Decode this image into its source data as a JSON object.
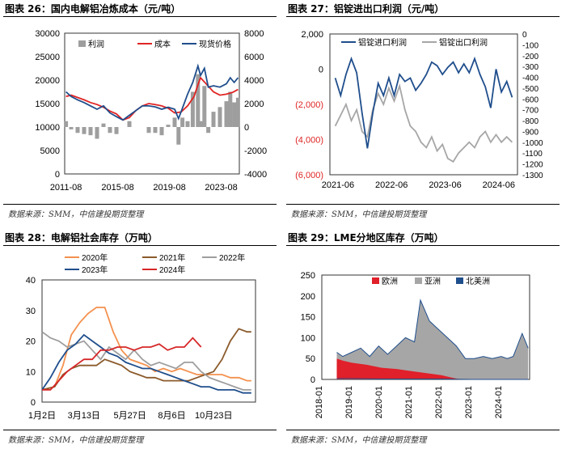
{
  "source_note": "数据来源：SMM，中信建投期货整理",
  "charts": [
    {
      "title": "图表 26：国内电解铝冶炼成本（元/吨）",
      "chart_data": {
        "type": "bar+line",
        "x_ticks": [
          "2011-08",
          "2015-08",
          "2019-08",
          "2023-08"
        ],
        "x_range": [
          2011.5,
          2025.0
        ],
        "y_left": {
          "range": [
            0,
            30000
          ],
          "ticks": [
            "0",
            "5000",
            "10000",
            "15000",
            "20000",
            "25000",
            "30000"
          ]
        },
        "y_right": {
          "range": [
            -4000,
            8000
          ],
          "ticks": [
            "-4000",
            "-2000",
            "0",
            "2000",
            "4000",
            "6000",
            "8000"
          ]
        },
        "legend": [
          "利润",
          "成本",
          "现货价格"
        ],
        "colors": {
          "profit": "#9e9e9e",
          "cost": "#e02424",
          "price": "#1f4e8c"
        },
        "series": [
          {
            "name": "成本",
            "axis": "left",
            "x": [
              2011.6,
              2012,
              2012.5,
              2013,
              2013.5,
              2014,
              2014.5,
              2015,
              2015.5,
              2016,
              2016.5,
              2017,
              2017.5,
              2018,
              2018.5,
              2019,
              2019.5,
              2020,
              2020.5,
              2021,
              2021.5,
              2021.8,
              2022,
              2022.5,
              2023,
              2023.5,
              2024,
              2024.5,
              2024.9
            ],
            "y": [
              16500,
              16800,
              16300,
              15800,
              15200,
              14800,
              14200,
              13400,
              12800,
              11500,
              12000,
              13500,
              14500,
              15000,
              14800,
              14500,
              14000,
              13000,
              13200,
              14500,
              16500,
              19000,
              20500,
              19000,
              17500,
              16800,
              17000,
              17400,
              18000
            ]
          },
          {
            "name": "现货价格",
            "axis": "left",
            "x": [
              2011.6,
              2012,
              2012.5,
              2013,
              2013.5,
              2014,
              2014.5,
              2015,
              2015.5,
              2016,
              2016.5,
              2017,
              2017.5,
              2018,
              2018.5,
              2019,
              2019.5,
              2020,
              2020.3,
              2020.6,
              2021,
              2021.4,
              2021.8,
              2022,
              2022.3,
              2022.6,
              2023,
              2023.5,
              2024,
              2024.3,
              2024.6,
              2024.9
            ],
            "y": [
              17500,
              16500,
              15800,
              15200,
              14500,
              13800,
              14500,
              13000,
              12200,
              11500,
              12500,
              13500,
              14500,
              14500,
              14300,
              13800,
              14200,
              13800,
              11800,
              14000,
              17000,
              19500,
              23000,
              21000,
              22500,
              18500,
              18800,
              18500,
              19200,
              20500,
              19500,
              20500
            ]
          },
          {
            "name": "利润",
            "axis": "right",
            "type": "bar",
            "x": [
              2011.6,
              2012,
              2012.5,
              2013,
              2013.5,
              2014,
              2014.5,
              2015,
              2015.5,
              2016,
              2016.5,
              2017,
              2017.5,
              2018,
              2018.5,
              2019,
              2019.5,
              2020,
              2020.3,
              2020.6,
              2021,
              2021.4,
              2021.8,
              2022,
              2022.3,
              2022.6,
              2023,
              2023.5,
              2024,
              2024.3,
              2024.6,
              2024.9
            ],
            "y": [
              500,
              -200,
              -500,
              -600,
              -700,
              -1000,
              300,
              -500,
              -600,
              0,
              500,
              0,
              0,
              -500,
              -500,
              -700,
              200,
              800,
              -1500,
              800,
              500,
              3000,
              4500,
              500,
              3500,
              -500,
              1300,
              1700,
              2200,
              3000,
              2100,
              2500
            ]
          }
        ]
      }
    },
    {
      "title": "图表 27：铝锭进出口利润（元/吨）",
      "chart_data": {
        "type": "line",
        "x_ticks": [
          "2021-06",
          "2022-06",
          "2023-06",
          "2024-06"
        ],
        "x_range": [
          2021.3,
          2024.8
        ],
        "y_left": {
          "range": [
            -6000,
            2000
          ],
          "ticks": [
            "(6,000)",
            "(4,000)",
            "(2,000)",
            "0",
            "2,000"
          ],
          "negative_color": "#e02424"
        },
        "y_right": {
          "range": [
            -1300,
            0
          ],
          "ticks": [
            "-1300",
            "-1200",
            "-1100",
            "-1000",
            "-900",
            "-800",
            "-700",
            "-600",
            "-500",
            "-400",
            "-300",
            "-200",
            "-100",
            "0"
          ]
        },
        "legend": [
          "铝锭进口利润",
          "铝锭出口利润"
        ],
        "colors": {
          "import": "#1f4e8c",
          "export": "#a6a6a6"
        },
        "series": [
          {
            "name": "铝锭进口利润",
            "axis": "left",
            "x": [
              2021.4,
              2021.5,
              2021.6,
              2021.7,
              2021.8,
              2021.9,
              2022,
              2022.1,
              2022.2,
              2022.3,
              2022.4,
              2022.5,
              2022.6,
              2022.7,
              2022.8,
              2022.9,
              2023,
              2023.1,
              2023.2,
              2023.3,
              2023.4,
              2023.5,
              2023.6,
              2023.7,
              2023.8,
              2023.9,
              2024,
              2024.1,
              2024.2,
              2024.3,
              2024.4,
              2024.5,
              2024.6,
              2024.7
            ],
            "y": [
              -500,
              -1500,
              -300,
              600,
              -200,
              -2500,
              -4500,
              -2500,
              -800,
              -1500,
              -500,
              -1500,
              -300,
              -700,
              -500,
              -1200,
              -800,
              -300,
              400,
              200,
              -300,
              100,
              400,
              -200,
              300,
              -200,
              600,
              -300,
              -1000,
              -2200,
              0,
              -1300,
              -700,
              -1600
            ]
          },
          {
            "name": "铝锭出口利润",
            "axis": "right",
            "x": [
              2021.4,
              2021.5,
              2021.6,
              2021.7,
              2021.8,
              2021.9,
              2022,
              2022.1,
              2022.2,
              2022.3,
              2022.4,
              2022.5,
              2022.6,
              2022.7,
              2022.8,
              2022.9,
              2023,
              2023.1,
              2023.2,
              2023.3,
              2023.4,
              2023.5,
              2023.6,
              2023.7,
              2023.8,
              2023.9,
              2024,
              2024.1,
              2024.2,
              2024.3,
              2024.4,
              2024.5,
              2024.6,
              2024.7
            ],
            "y": [
              -850,
              -750,
              -650,
              -800,
              -700,
              -900,
              -950,
              -700,
              -550,
              -650,
              -500,
              -620,
              -480,
              -700,
              -850,
              -900,
              -1000,
              -1050,
              -950,
              -1080,
              -1020,
              -1150,
              -1180,
              -1100,
              -1050,
              -1000,
              -1050,
              -950,
              -900,
              -1000,
              -930,
              -1000,
              -950,
              -1000
            ]
          }
        ]
      }
    },
    {
      "title": "图表 28：电解铝社会库存（万吨）",
      "chart_data": {
        "type": "line",
        "x_ticks": [
          "1月2日",
          "3月13日",
          "5月27日",
          "8月6日",
          "10月23日"
        ],
        "x_range": [
          1,
          52
        ],
        "y_left": {
          "range": [
            0,
            40
          ],
          "ticks": [
            "0",
            "10",
            "20",
            "30",
            "40"
          ]
        },
        "legend": [
          "2020年",
          "2021年",
          "2022年",
          "2023年",
          "2024年"
        ],
        "colors": {
          "2020": "#f4914e",
          "2021": "#8b5a2b",
          "2022": "#9e9e9e",
          "2023": "#1f4e8c",
          "2024": "#d62728"
        },
        "series": [
          {
            "name": "2020年",
            "x": [
              1,
              4,
              6,
              8,
              10,
              12,
              14,
              16,
              18,
              20,
              22,
              24,
              26,
              28,
              30,
              32,
              34,
              36,
              38,
              40,
              42,
              44,
              46,
              48,
              50,
              51
            ],
            "y": [
              4,
              5,
              12,
              22,
              26,
              29,
              31,
              31,
              23,
              17,
              14,
              13,
              12,
              10,
              11,
              10,
              11,
              10,
              9,
              9,
              9,
              9,
              8,
              8,
              7,
              7
            ]
          },
          {
            "name": "2021年",
            "x": [
              1,
              4,
              6,
              8,
              10,
              12,
              14,
              16,
              18,
              20,
              22,
              24,
              26,
              28,
              30,
              32,
              34,
              36,
              38,
              40,
              42,
              44,
              46,
              48,
              50,
              51
            ],
            "y": [
              4,
              5,
              9,
              11,
              12,
              12,
              12,
              14,
              13,
              12,
              10,
              9,
              8,
              8,
              7,
              7,
              7,
              7,
              8,
              9,
              10,
              14,
              20,
              24,
              23,
              23
            ]
          },
          {
            "name": "2022年",
            "x": [
              1,
              3,
              5,
              7,
              9,
              11,
              13,
              15,
              17,
              19,
              21,
              23,
              25,
              27,
              29,
              31,
              33,
              35,
              37,
              39,
              41,
              43,
              45,
              47,
              49,
              51
            ],
            "y": [
              23,
              21,
              20,
              18,
              19,
              20,
              17,
              14,
              18,
              16,
              14,
              17,
              14,
              12,
              13,
              12,
              11,
              13,
              13,
              10,
              8,
              7,
              6,
              5,
              4,
              4
            ]
          },
          {
            "name": "2023年",
            "x": [
              1,
              3,
              5,
              7,
              9,
              11,
              13,
              15,
              17,
              19,
              21,
              23,
              25,
              27,
              29,
              31,
              33,
              35,
              37,
              39,
              41,
              43,
              45,
              47,
              49,
              51
            ],
            "y": [
              4,
              8,
              13,
              17,
              19,
              22,
              20,
              18,
              16,
              15,
              13,
              12,
              11,
              11,
              10,
              9,
              8,
              7,
              6,
              5,
              5,
              4,
              4,
              4,
              3,
              3
            ]
          },
          {
            "name": "2024年",
            "x": [
              1,
              3,
              5,
              7,
              9,
              11,
              13,
              15,
              17,
              19,
              21,
              23,
              25,
              27,
              29,
              31,
              33,
              35,
              37,
              39
            ],
            "y": [
              4,
              4,
              7,
              10,
              12,
              14,
              14,
              17,
              17,
              18,
              18,
              17,
              18,
              18,
              19,
              17,
              18,
              18,
              21,
              18
            ]
          }
        ]
      }
    },
    {
      "title": "图表 29：LME分地区库存（万吨）",
      "chart_data": {
        "type": "area",
        "x_ticks": [
          "2018-01",
          "2019-01",
          "2020-01",
          "2021-01",
          "2022-01",
          "2023-01",
          "2024-01"
        ],
        "x_range": [
          2018.0,
          2024.95
        ],
        "y_left": {
          "range": [
            0,
            250
          ],
          "ticks": [
            "0",
            "50",
            "100",
            "150",
            "200",
            "250"
          ]
        },
        "legend": [
          "欧洲",
          "亚洲",
          "北美洲"
        ],
        "colors": {
          "europe": "#e0202a",
          "asia": "#a6a6a6",
          "north_america": "#1f4e8c"
        },
        "series": [
          {
            "name": "欧洲",
            "x": [
              2018.5,
              2018.7,
              2019,
              2019.5,
              2020,
              2020.5,
              2021,
              2021.5,
              2022,
              2022.3,
              2022.5,
              2022.7
            ],
            "y": [
              50,
              45,
              40,
              35,
              28,
              25,
              20,
              15,
              10,
              5,
              2,
              0
            ]
          },
          {
            "name": "亚洲",
            "x": [
              2018.5,
              2018.7,
              2019,
              2019.3,
              2019.6,
              2019.9,
              2020.2,
              2020.5,
              2020.8,
              2021.1,
              2021.3,
              2021.6,
              2021.9,
              2022.2,
              2022.5,
              2022.8,
              2023.1,
              2023.4,
              2023.7,
              2024,
              2024.2,
              2024.4,
              2024.7,
              2024.9
            ],
            "y": [
              65,
              55,
              65,
              75,
              55,
              80,
              60,
              80,
              100,
              90,
              190,
              140,
              120,
              100,
              80,
              50,
              50,
              55,
              50,
              55,
              50,
              55,
              110,
              75
            ]
          },
          {
            "name": "北美洲",
            "x": [
              2018.5,
              2019,
              2020,
              2021,
              2022,
              2023,
              2024,
              2024.9
            ],
            "y": [
              2,
              2,
              1,
              1,
              1,
              0,
              0,
              0
            ]
          }
        ]
      }
    }
  ]
}
